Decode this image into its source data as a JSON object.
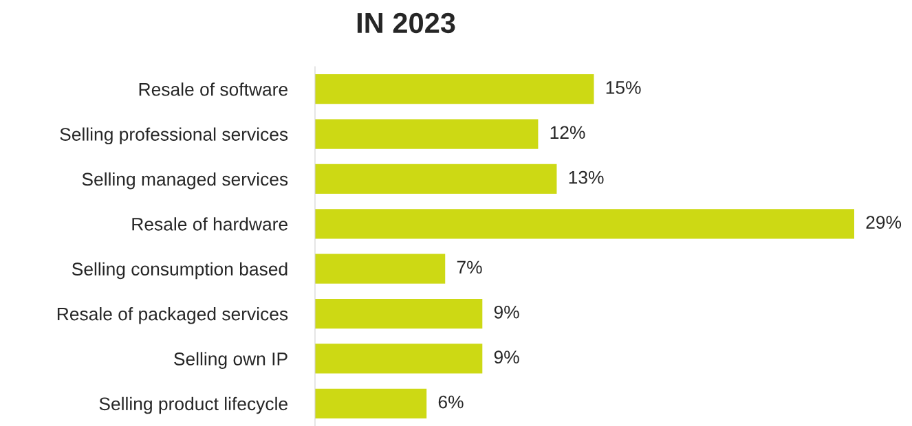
{
  "chart_data": {
    "type": "bar",
    "orientation": "horizontal",
    "title": "IN 2023",
    "categories": [
      "Resale of software",
      "Selling professional services",
      "Selling managed services",
      "Resale of hardware",
      "Selling consumption based",
      "Resale of packaged services",
      "Selling own IP",
      "Selling product lifecycle"
    ],
    "values": [
      15,
      12,
      13,
      29,
      7,
      9,
      9,
      6
    ],
    "value_labels": [
      "15%",
      "12%",
      "13%",
      "29%",
      "7%",
      "9%",
      "9%",
      "6%"
    ],
    "color": "#cdd914",
    "grid": false,
    "legend": false
  }
}
